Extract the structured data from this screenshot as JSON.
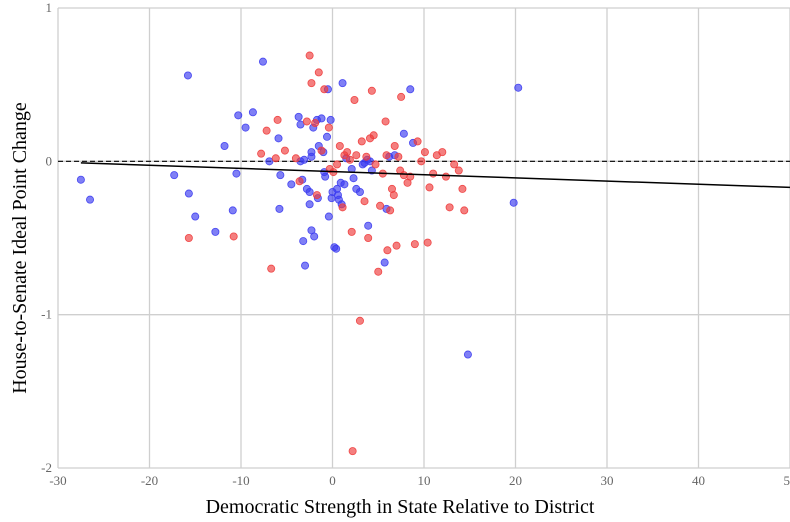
{
  "chart_data": {
    "type": "scatter",
    "xlabel": "Democratic Strength in State Relative to District",
    "ylabel": "House-to-Senate Ideal Point Change",
    "xlim": [
      -30,
      50
    ],
    "ylim": [
      -2,
      1
    ],
    "x_ticks": [
      -30,
      -20,
      -10,
      0,
      10,
      20,
      30,
      40,
      50
    ],
    "y_ticks": [
      1,
      0,
      -1,
      -2
    ],
    "x_tick_labels": [
      "-30",
      "-20",
      "-10",
      "0",
      "10",
      "20",
      "30",
      "40",
      "50"
    ],
    "y_tick_labels": [
      "1",
      "0",
      "-1",
      "-2"
    ],
    "grid": true,
    "reference_line": {
      "y": 0,
      "style": "dashed",
      "color": "#000000"
    },
    "fit_line": {
      "x": [
        -27.5,
        50
      ],
      "y": [
        -0.01,
        -0.17
      ],
      "color": "#000000"
    },
    "series": [
      {
        "color": "#3b3bf0",
        "points": [
          [
            -27.5,
            -0.12
          ],
          [
            -26.5,
            -0.25
          ],
          [
            -15.8,
            0.56
          ],
          [
            -15.7,
            -0.21
          ],
          [
            -15.0,
            -0.36
          ],
          [
            -17.3,
            -0.09
          ],
          [
            -12.8,
            -0.46
          ],
          [
            -11.8,
            0.1
          ],
          [
            -10.9,
            -0.32
          ],
          [
            -10.3,
            0.3
          ],
          [
            -10.5,
            -0.08
          ],
          [
            -9.5,
            0.22
          ],
          [
            -8.7,
            0.32
          ],
          [
            -7.6,
            0.65
          ],
          [
            -6.9,
            0.0
          ],
          [
            -5.9,
            0.15
          ],
          [
            -5.8,
            -0.31
          ],
          [
            -5.7,
            -0.09
          ],
          [
            -4.5,
            -0.15
          ],
          [
            -3.7,
            0.29
          ],
          [
            -3.5,
            0.24
          ],
          [
            -3.5,
            0.0
          ],
          [
            -3.1,
            0.01
          ],
          [
            -3.3,
            -0.12
          ],
          [
            -3.2,
            -0.52
          ],
          [
            -3.0,
            -0.68
          ],
          [
            -2.8,
            -0.18
          ],
          [
            -2.5,
            -0.2
          ],
          [
            -2.5,
            -0.28
          ],
          [
            -2.3,
            0.06
          ],
          [
            -2.3,
            0.03
          ],
          [
            -2.1,
            0.22
          ],
          [
            -2.3,
            -0.45
          ],
          [
            -2.0,
            -0.49
          ],
          [
            -1.7,
            0.27
          ],
          [
            -1.5,
            0.1
          ],
          [
            -1.6,
            -0.24
          ],
          [
            -1.2,
            0.28
          ],
          [
            -1.0,
            0.06
          ],
          [
            -0.9,
            -0.07
          ],
          [
            -0.8,
            -0.1
          ],
          [
            -0.6,
            0.16
          ],
          [
            -0.5,
            0.47
          ],
          [
            -0.4,
            -0.36
          ],
          [
            -0.2,
            0.27
          ],
          [
            -0.1,
            -0.24
          ],
          [
            0.0,
            -0.2
          ],
          [
            0.2,
            -0.56
          ],
          [
            0.4,
            -0.57
          ],
          [
            0.5,
            -0.18
          ],
          [
            0.6,
            -0.22
          ],
          [
            0.7,
            -0.25
          ],
          [
            0.9,
            -0.14
          ],
          [
            1.0,
            -0.28
          ],
          [
            1.1,
            0.51
          ],
          [
            1.3,
            -0.15
          ],
          [
            1.5,
            0.02
          ],
          [
            2.1,
            -0.05
          ],
          [
            2.3,
            -0.11
          ],
          [
            2.6,
            -0.18
          ],
          [
            3.0,
            -0.2
          ],
          [
            3.3,
            -0.02
          ],
          [
            3.5,
            -0.01
          ],
          [
            3.8,
            0.01
          ],
          [
            4.1,
            0.0
          ],
          [
            4.3,
            -0.06
          ],
          [
            3.9,
            -0.42
          ],
          [
            5.7,
            -0.66
          ],
          [
            5.9,
            -0.31
          ],
          [
            6.2,
            0.03
          ],
          [
            6.8,
            0.04
          ],
          [
            7.8,
            0.18
          ],
          [
            8.5,
            0.47
          ],
          [
            8.8,
            0.12
          ],
          [
            14.8,
            -1.26
          ],
          [
            19.8,
            -0.27
          ],
          [
            20.3,
            0.48
          ]
        ]
      },
      {
        "color": "#ee3b3b",
        "points": [
          [
            -15.7,
            -0.5
          ],
          [
            -10.8,
            -0.49
          ],
          [
            -7.8,
            0.05
          ],
          [
            -7.2,
            0.2
          ],
          [
            -6.7,
            -0.7
          ],
          [
            -6.2,
            0.02
          ],
          [
            -5.2,
            0.07
          ],
          [
            -4.0,
            0.02
          ],
          [
            -3.6,
            -0.13
          ],
          [
            -2.8,
            0.26
          ],
          [
            -2.5,
            0.69
          ],
          [
            -2.3,
            0.51
          ],
          [
            -1.9,
            0.25
          ],
          [
            -1.7,
            -0.22
          ],
          [
            -1.5,
            0.58
          ],
          [
            -1.2,
            0.07
          ],
          [
            -0.9,
            0.47
          ],
          [
            -0.4,
            0.22
          ],
          [
            -0.3,
            -0.05
          ],
          [
            0.1,
            -0.07
          ],
          [
            0.5,
            -0.02
          ],
          [
            0.8,
            0.1
          ],
          [
            1.1,
            -0.3
          ],
          [
            1.3,
            0.04
          ],
          [
            1.6,
            0.06
          ],
          [
            1.9,
            0.01
          ],
          [
            2.1,
            -0.46
          ],
          [
            2.2,
            -1.89
          ],
          [
            2.4,
            0.4
          ],
          [
            2.6,
            0.04
          ],
          [
            3.0,
            -1.04
          ],
          [
            3.2,
            0.13
          ],
          [
            3.5,
            -0.26
          ],
          [
            3.7,
            0.03
          ],
          [
            3.9,
            -0.5
          ],
          [
            4.1,
            0.15
          ],
          [
            4.3,
            0.46
          ],
          [
            4.5,
            0.17
          ],
          [
            4.7,
            -0.02
          ],
          [
            5.0,
            -0.72
          ],
          [
            5.2,
            -0.29
          ],
          [
            5.5,
            -0.08
          ],
          [
            5.8,
            0.26
          ],
          [
            5.9,
            0.04
          ],
          [
            6.0,
            -0.58
          ],
          [
            6.3,
            -0.32
          ],
          [
            6.5,
            -0.18
          ],
          [
            6.7,
            -0.22
          ],
          [
            6.8,
            0.1
          ],
          [
            7.0,
            -0.55
          ],
          [
            7.2,
            0.03
          ],
          [
            7.4,
            -0.06
          ],
          [
            7.5,
            0.42
          ],
          [
            7.8,
            -0.09
          ],
          [
            8.2,
            -0.14
          ],
          [
            8.5,
            -0.1
          ],
          [
            9.0,
            -0.54
          ],
          [
            9.3,
            0.13
          ],
          [
            9.7,
            0.0
          ],
          [
            10.1,
            0.06
          ],
          [
            10.4,
            -0.53
          ],
          [
            10.6,
            -0.17
          ],
          [
            11.0,
            -0.08
          ],
          [
            11.4,
            0.04
          ],
          [
            12.0,
            0.06
          ],
          [
            12.4,
            -0.1
          ],
          [
            12.8,
            -0.3
          ],
          [
            13.3,
            -0.02
          ],
          [
            13.8,
            -0.06
          ],
          [
            14.2,
            -0.18
          ],
          [
            14.4,
            -0.32
          ],
          [
            -6.0,
            0.27
          ]
        ]
      }
    ]
  }
}
